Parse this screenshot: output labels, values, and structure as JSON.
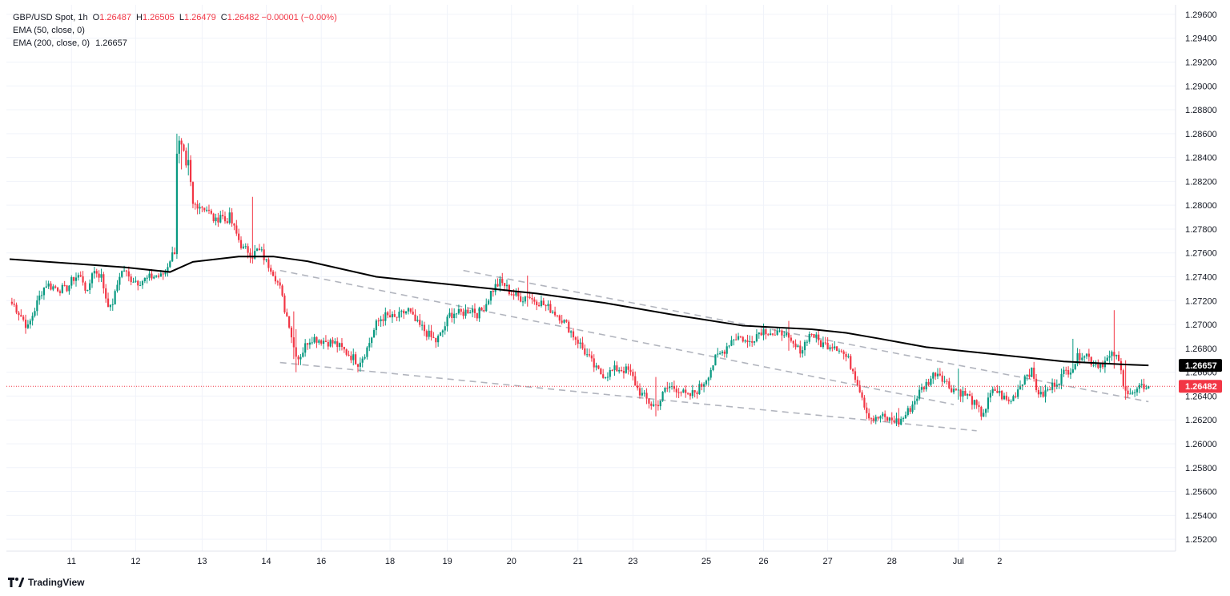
{
  "legend": {
    "symbol": "GBP/USD Spot",
    "interval": "1h",
    "open_label": "O",
    "open": "1.26487",
    "high_label": "H",
    "high": "1.26505",
    "low_label": "L",
    "low": "1.26479",
    "close_label": "C",
    "close": "1.26482",
    "change": "−0.00001 (−0.00%)",
    "ema50_label": "EMA (50, close, 0)",
    "ema200_label": "EMA (200, close, 0)",
    "ema200_value": "1.26657"
  },
  "branding": {
    "name": "TradingView",
    "logo_icon": "tradingview-logo-icon"
  },
  "colors": {
    "up": "#089981",
    "down": "#f23645",
    "ema200": "#000000",
    "trendline": "#b2b5be",
    "last_price": "#f23645",
    "grid": "#f0f3fa"
  },
  "chart_data": {
    "type": "candlestick",
    "title": "",
    "xlabel": "",
    "ylabel": "",
    "ylim": [
      1.251,
      1.2968
    ],
    "y_ticks": [
      "1.29600",
      "1.29400",
      "1.29200",
      "1.29000",
      "1.28800",
      "1.28600",
      "1.28400",
      "1.28200",
      "1.28000",
      "1.27800",
      "1.27600",
      "1.27400",
      "1.27200",
      "1.27000",
      "1.26800",
      "1.26600",
      "1.26400",
      "1.26200",
      "1.26000",
      "1.25800",
      "1.25600",
      "1.25400",
      "1.25200"
    ],
    "x_ticks": [
      "11",
      "12",
      "13",
      "14",
      "16",
      "18",
      "19",
      "20",
      "21",
      "23",
      "25",
      "26",
      "27",
      "28",
      "Jul",
      "2"
    ],
    "close_series": [
      [
        0,
        1.2719
      ],
      [
        2,
        1.2716
      ],
      [
        4,
        1.271
      ],
      [
        6,
        1.2704
      ],
      [
        8,
        1.2697
      ],
      [
        10,
        1.2708
      ],
      [
        12,
        1.2718
      ],
      [
        14,
        1.2728
      ],
      [
        16,
        1.2734
      ],
      [
        18,
        1.2732
      ],
      [
        20,
        1.2731
      ],
      [
        22,
        1.273
      ],
      [
        24,
        1.2729
      ],
      [
        26,
        1.2733
      ],
      [
        28,
        1.2739
      ],
      [
        30,
        1.2741
      ],
      [
        32,
        1.2737
      ],
      [
        34,
        1.2725
      ],
      [
        36,
        1.2745
      ],
      [
        38,
        1.2744
      ],
      [
        40,
        1.274
      ],
      [
        42,
        1.2723
      ],
      [
        44,
        1.2713
      ],
      [
        46,
        1.2725
      ],
      [
        48,
        1.2742
      ],
      [
        50,
        1.2746
      ],
      [
        52,
        1.2739
      ],
      [
        54,
        1.2738
      ],
      [
        56,
        1.2736
      ],
      [
        58,
        1.2737
      ],
      [
        60,
        1.2738
      ],
      [
        62,
        1.274
      ],
      [
        64,
        1.2741
      ],
      [
        66,
        1.274
      ],
      [
        68,
        1.2745
      ],
      [
        70,
        1.2755
      ],
      [
        72,
        1.2762
      ],
      [
        73,
        1.2845
      ],
      [
        74,
        1.2852
      ],
      [
        75,
        1.2848
      ],
      [
        76,
        1.2842
      ],
      [
        77,
        1.283
      ],
      [
        78,
        1.2835
      ],
      [
        80,
        1.28
      ],
      [
        82,
        1.2801
      ],
      [
        84,
        1.2799
      ],
      [
        86,
        1.2797
      ],
      [
        88,
        1.2791
      ],
      [
        90,
        1.2786
      ],
      [
        92,
        1.2793
      ],
      [
        94,
        1.2787
      ],
      [
        96,
        1.279
      ],
      [
        98,
        1.278
      ],
      [
        100,
        1.2771
      ],
      [
        102,
        1.2763
      ],
      [
        104,
        1.2762
      ],
      [
        106,
        1.2758
      ],
      [
        108,
        1.2762
      ],
      [
        110,
        1.276
      ],
      [
        112,
        1.2752
      ],
      [
        114,
        1.2748
      ],
      [
        116,
        1.274
      ],
      [
        118,
        1.273
      ],
      [
        120,
        1.2713
      ],
      [
        122,
        1.2701
      ],
      [
        124,
        1.2681
      ],
      [
        126,
        1.2672
      ],
      [
        128,
        1.2678
      ],
      [
        130,
        1.2686
      ],
      [
        132,
        1.2689
      ],
      [
        134,
        1.2688
      ],
      [
        136,
        1.2687
      ],
      [
        138,
        1.2686
      ],
      [
        140,
        1.2685
      ],
      [
        142,
        1.2684
      ],
      [
        144,
        1.2681
      ],
      [
        146,
        1.2678
      ],
      [
        148,
        1.2675
      ],
      [
        150,
        1.2672
      ],
      [
        152,
        1.2668
      ],
      [
        154,
        1.2673
      ],
      [
        156,
        1.268
      ],
      [
        158,
        1.269
      ],
      [
        160,
        1.27
      ],
      [
        162,
        1.2705
      ],
      [
        164,
        1.2707
      ],
      [
        166,
        1.2706
      ],
      [
        168,
        1.2705
      ],
      [
        170,
        1.2707
      ],
      [
        172,
        1.271
      ],
      [
        174,
        1.2712
      ],
      [
        176,
        1.2705
      ],
      [
        178,
        1.27
      ],
      [
        180,
        1.2697
      ],
      [
        182,
        1.2693
      ],
      [
        184,
        1.2689
      ],
      [
        186,
        1.2686
      ],
      [
        188,
        1.2691
      ],
      [
        190,
        1.2699
      ],
      [
        192,
        1.2708
      ],
      [
        194,
        1.271
      ],
      [
        196,
        1.2709
      ],
      [
        198,
        1.271
      ],
      [
        200,
        1.2712
      ],
      [
        202,
        1.2713
      ],
      [
        204,
        1.2709
      ],
      [
        206,
        1.2712
      ],
      [
        208,
        1.2718
      ],
      [
        210,
        1.2727
      ],
      [
        212,
        1.2732
      ],
      [
        214,
        1.2735
      ],
      [
        216,
        1.2733
      ],
      [
        218,
        1.2728
      ],
      [
        220,
        1.2725
      ],
      [
        222,
        1.2723
      ],
      [
        224,
        1.2722
      ],
      [
        226,
        1.2725
      ],
      [
        228,
        1.2721
      ],
      [
        230,
        1.272
      ],
      [
        232,
        1.2718
      ],
      [
        234,
        1.2715
      ],
      [
        236,
        1.2713
      ],
      [
        238,
        1.271
      ],
      [
        240,
        1.2707
      ],
      [
        242,
        1.2702
      ],
      [
        244,
        1.2697
      ],
      [
        246,
        1.2691
      ],
      [
        248,
        1.2686
      ],
      [
        250,
        1.268
      ],
      [
        252,
        1.2674
      ],
      [
        254,
        1.2668
      ],
      [
        256,
        1.2662
      ],
      [
        258,
        1.2659
      ],
      [
        260,
        1.2658
      ],
      [
        262,
        1.266
      ],
      [
        264,
        1.2662
      ],
      [
        266,
        1.2663
      ],
      [
        268,
        1.2662
      ],
      [
        270,
        1.2661
      ],
      [
        272,
        1.2655
      ],
      [
        274,
        1.2646
      ],
      [
        276,
        1.2641
      ],
      [
        278,
        1.2637
      ],
      [
        280,
        1.2633
      ],
      [
        282,
        1.2632
      ],
      [
        284,
        1.2637
      ],
      [
        286,
        1.2645
      ],
      [
        288,
        1.2648
      ],
      [
        290,
        1.2647
      ],
      [
        292,
        1.2646
      ],
      [
        294,
        1.2642
      ],
      [
        296,
        1.2639
      ],
      [
        298,
        1.2642
      ],
      [
        300,
        1.2645
      ],
      [
        302,
        1.2649
      ],
      [
        304,
        1.2655
      ],
      [
        306,
        1.2663
      ],
      [
        308,
        1.2671
      ],
      [
        310,
        1.2675
      ],
      [
        312,
        1.2679
      ],
      [
        314,
        1.2685
      ],
      [
        316,
        1.2689
      ],
      [
        318,
        1.269
      ],
      [
        320,
        1.2688
      ],
      [
        322,
        1.2684
      ],
      [
        324,
        1.2688
      ],
      [
        326,
        1.2692
      ],
      [
        328,
        1.2695
      ],
      [
        330,
        1.2695
      ],
      [
        332,
        1.2694
      ],
      [
        334,
        1.269
      ],
      [
        336,
        1.2692
      ],
      [
        338,
        1.2695
      ],
      [
        340,
        1.2685
      ],
      [
        342,
        1.2682
      ],
      [
        344,
        1.2679
      ],
      [
        346,
        1.268
      ],
      [
        348,
        1.2689
      ],
      [
        350,
        1.2693
      ],
      [
        352,
        1.2688
      ],
      [
        354,
        1.2684
      ],
      [
        356,
        1.2683
      ],
      [
        358,
        1.2683
      ],
      [
        360,
        1.2683
      ],
      [
        362,
        1.268
      ],
      [
        364,
        1.2675
      ],
      [
        366,
        1.267
      ],
      [
        368,
        1.2662
      ],
      [
        370,
        1.2652
      ],
      [
        372,
        1.264
      ],
      [
        374,
        1.2627
      ],
      [
        376,
        1.2622
      ],
      [
        378,
        1.262
      ],
      [
        380,
        1.2623
      ],
      [
        382,
        1.2621
      ],
      [
        384,
        1.262
      ],
      [
        386,
        1.262
      ],
      [
        388,
        1.2618
      ],
      [
        390,
        1.2622
      ],
      [
        392,
        1.2627
      ],
      [
        394,
        1.2633
      ],
      [
        396,
        1.264
      ],
      [
        398,
        1.2646
      ],
      [
        400,
        1.265
      ],
      [
        402,
        1.2655
      ],
      [
        404,
        1.266
      ],
      [
        406,
        1.2659
      ],
      [
        408,
        1.2653
      ],
      [
        410,
        1.2648
      ],
      [
        412,
        1.2646
      ],
      [
        414,
        1.2645
      ],
      [
        416,
        1.2642
      ],
      [
        418,
        1.264
      ],
      [
        420,
        1.2636
      ],
      [
        422,
        1.263
      ],
      [
        424,
        1.2625
      ],
      [
        426,
        1.263
      ],
      [
        428,
        1.2641
      ],
      [
        430,
        1.2645
      ],
      [
        432,
        1.2642
      ],
      [
        434,
        1.2638
      ],
      [
        436,
        1.2635
      ],
      [
        438,
        1.2639
      ],
      [
        440,
        1.2646
      ],
      [
        442,
        1.2653
      ],
      [
        444,
        1.266
      ],
      [
        446,
        1.266
      ],
      [
        448,
        1.2647
      ],
      [
        450,
        1.264
      ],
      [
        452,
        1.2643
      ],
      [
        454,
        1.2646
      ],
      [
        456,
        1.2651
      ],
      [
        458,
        1.2654
      ],
      [
        460,
        1.2659
      ],
      [
        462,
        1.2662
      ],
      [
        464,
        1.2665
      ],
      [
        466,
        1.2672
      ],
      [
        468,
        1.2676
      ],
      [
        470,
        1.2675
      ],
      [
        472,
        1.2669
      ],
      [
        474,
        1.2667
      ],
      [
        476,
        1.2667
      ],
      [
        478,
        1.2669
      ],
      [
        480,
        1.2672
      ],
      [
        482,
        1.2675
      ],
      [
        484,
        1.2668
      ],
      [
        486,
        1.2652
      ],
      [
        488,
        1.2643
      ],
      [
        490,
        1.2641
      ],
      [
        492,
        1.2644
      ],
      [
        494,
        1.2647
      ],
      [
        496,
        1.2649
      ],
      [
        497,
        1.26482
      ]
    ],
    "spikes": [
      [
        73,
        1.286,
        1.2755
      ],
      [
        74,
        1.2858,
        1.2835
      ],
      [
        75,
        1.2855,
        1.283
      ],
      [
        78,
        1.2852,
        1.2825
      ],
      [
        106,
        1.2807,
        1.2752
      ],
      [
        124,
        1.2711,
        1.2671
      ],
      [
        125,
        1.2696,
        1.266
      ],
      [
        226,
        1.2741,
        1.2715
      ],
      [
        282,
        1.2656,
        1.2623
      ],
      [
        340,
        1.2703,
        1.2678
      ],
      [
        388,
        1.263,
        1.2614
      ],
      [
        414,
        1.2663,
        1.2637
      ],
      [
        464,
        1.2688,
        1.2659
      ],
      [
        482,
        1.2712,
        1.2663
      ],
      [
        487,
        1.267,
        1.2637
      ]
    ],
    "ema200": [
      [
        0,
        1.27548
      ],
      [
        50,
        1.2748
      ],
      [
        70,
        1.2744
      ],
      [
        80,
        1.27525
      ],
      [
        100,
        1.2757
      ],
      [
        115,
        1.2757
      ],
      [
        130,
        1.2753
      ],
      [
        160,
        1.274
      ],
      [
        200,
        1.2732
      ],
      [
        230,
        1.2726
      ],
      [
        260,
        1.2718
      ],
      [
        290,
        1.2708
      ],
      [
        320,
        1.2699
      ],
      [
        350,
        1.2696
      ],
      [
        365,
        1.2693
      ],
      [
        380,
        1.2688
      ],
      [
        400,
        1.2681
      ],
      [
        430,
        1.2675
      ],
      [
        460,
        1.2669
      ],
      [
        490,
        1.26662
      ],
      [
        497,
        1.26657
      ]
    ],
    "trendlines": [
      {
        "from": [
          118,
          1.27453
        ],
        "to": [
          412,
          1.26329
        ]
      },
      {
        "from": [
          198,
          1.27453
        ],
        "to": [
          497,
          1.26353
        ]
      },
      {
        "from": [
          118,
          1.26681
        ],
        "to": [
          422,
          1.26109
        ]
      }
    ],
    "last_price": "1.26482",
    "ema200_tag": "1.26657"
  }
}
